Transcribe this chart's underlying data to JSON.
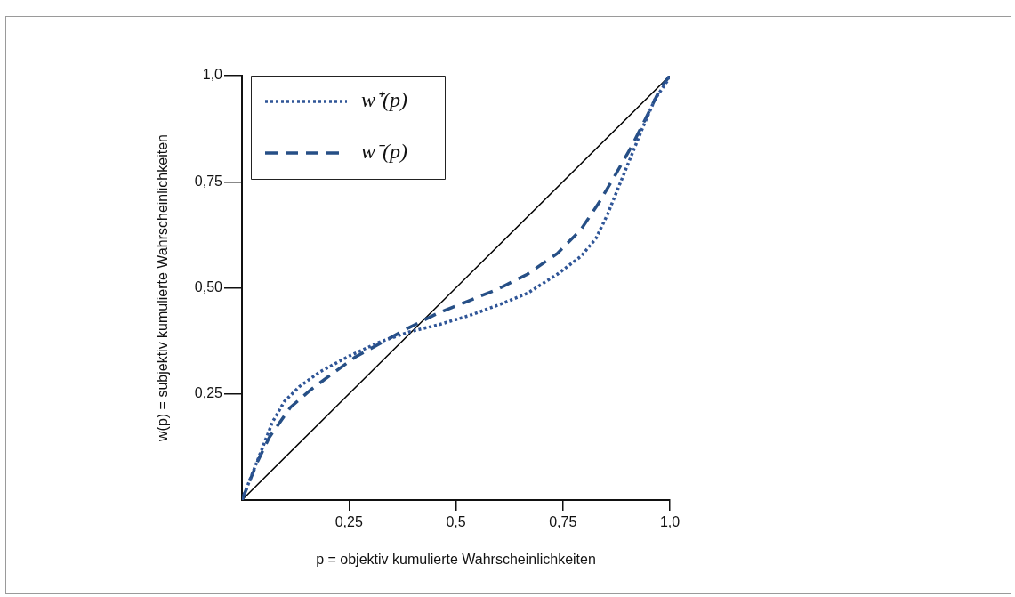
{
  "chart_data": {
    "type": "line",
    "xlabel": "p = objektiv kumulierte Wahrscheinlichkeiten",
    "ylabel": "w(p) = subjektiv kumulierte Wahrscheinlichkeiten",
    "xlim": [
      0,
      1
    ],
    "ylim": [
      0,
      1
    ],
    "xticks": [
      {
        "value": 0.25,
        "label": "0,25"
      },
      {
        "value": 0.5,
        "label": "0,5"
      },
      {
        "value": 0.75,
        "label": "0,75"
      },
      {
        "value": 1,
        "label": "1,0"
      }
    ],
    "yticks": [
      {
        "value": 0.25,
        "label": "0,25"
      },
      {
        "value": 0.5,
        "label": "0,50"
      },
      {
        "value": 0.75,
        "label": "0,75"
      },
      {
        "value": 1,
        "label": "1,0"
      }
    ],
    "grid": false,
    "legend": "top left",
    "marker": "none",
    "series": [
      {
        "name": "w⁺(p)",
        "color": "#2f5597",
        "line_style": "dotted",
        "x": [
          0,
          0.044,
          0.071,
          0.099,
          0.134,
          0.182,
          0.252,
          0.321,
          0.39,
          0.459,
          0.529,
          0.598,
          0.667,
          0.737,
          0.792,
          0.827,
          0.854,
          0.882,
          0.91,
          0.938,
          0.965,
          0.993,
          1
        ],
        "values": [
          0,
          0.113,
          0.183,
          0.232,
          0.267,
          0.302,
          0.34,
          0.372,
          0.396,
          0.413,
          0.434,
          0.459,
          0.487,
          0.532,
          0.574,
          0.616,
          0.672,
          0.742,
          0.811,
          0.881,
          0.944,
          0.986,
          1
        ]
      },
      {
        "name": "w⁻(p)",
        "color": "#264f86",
        "line_style": "dashed",
        "x": [
          0,
          0.037,
          0.064,
          0.113,
          0.161,
          0.217,
          0.265,
          0.321,
          0.39,
          0.459,
          0.529,
          0.598,
          0.667,
          0.737,
          0.792,
          0.834,
          0.875,
          0.91,
          0.945,
          0.979,
          1
        ],
        "values": [
          0,
          0.092,
          0.148,
          0.218,
          0.26,
          0.302,
          0.337,
          0.368,
          0.406,
          0.441,
          0.469,
          0.497,
          0.532,
          0.581,
          0.637,
          0.7,
          0.77,
          0.832,
          0.902,
          0.972,
          1
        ]
      },
      {
        "color": "#000000",
        "line_style": "solid",
        "x": [
          0,
          1
        ],
        "values": [
          0,
          1
        ]
      }
    ]
  }
}
